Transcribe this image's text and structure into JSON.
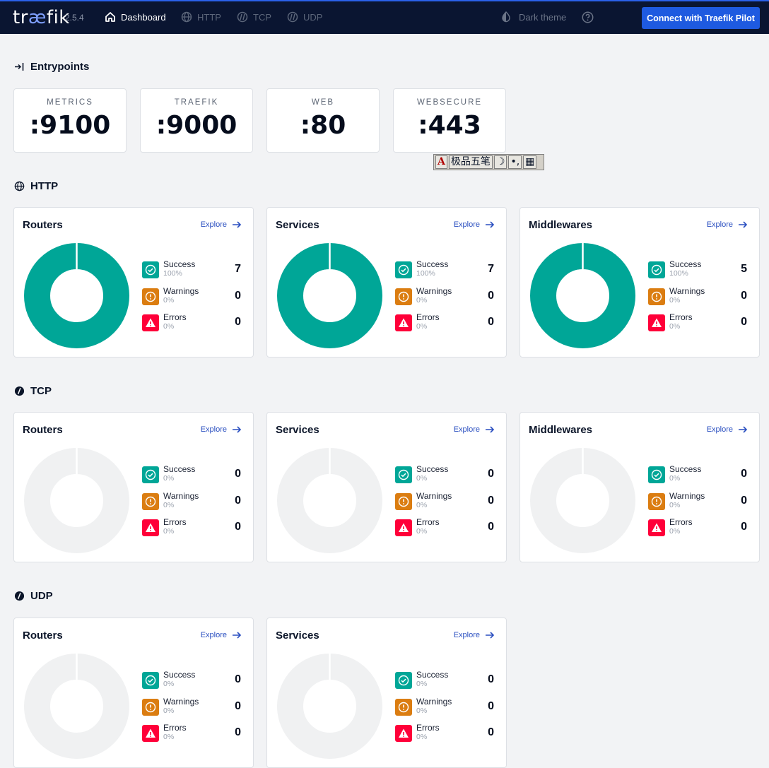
{
  "brand": {
    "logo_text_1": "tr",
    "logo_text_2": "æ",
    "logo_text_3": "fik",
    "version": "2.5.4"
  },
  "nav": {
    "dashboard": "Dashboard",
    "http": "HTTP",
    "tcp": "TCP",
    "udp": "UDP"
  },
  "header": {
    "theme_label": "Dark theme",
    "pilot_button": "Connect with Traefik Pilot"
  },
  "ime": {
    "a": "A",
    "name": "极品五笔",
    "moon": "☽",
    "punct": "•,",
    "kbd": "▦"
  },
  "entrypoints": {
    "title": "Entrypoints",
    "items": [
      {
        "name": "METRICS",
        "port": ":9100"
      },
      {
        "name": "TRAEFIK",
        "port": ":9000"
      },
      {
        "name": "WEB",
        "port": ":80"
      },
      {
        "name": "WEBSECURE",
        "port": ":443"
      }
    ]
  },
  "labels": {
    "explore": "Explore",
    "success": "Success",
    "warnings": "Warnings",
    "errors": "Errors"
  },
  "colors": {
    "success": "#00a697",
    "warning": "#db7d11",
    "error": "#ff0039",
    "empty": "#f0f1f2"
  },
  "sections": [
    {
      "title": "HTTP",
      "cards": [
        {
          "title": "Routers",
          "success": {
            "count": "7",
            "pct": "100%"
          },
          "warnings": {
            "count": "0",
            "pct": "0%"
          },
          "errors": {
            "count": "0",
            "pct": "0%"
          }
        },
        {
          "title": "Services",
          "success": {
            "count": "7",
            "pct": "100%"
          },
          "warnings": {
            "count": "0",
            "pct": "0%"
          },
          "errors": {
            "count": "0",
            "pct": "0%"
          }
        },
        {
          "title": "Middlewares",
          "success": {
            "count": "5",
            "pct": "100%"
          },
          "warnings": {
            "count": "0",
            "pct": "0%"
          },
          "errors": {
            "count": "0",
            "pct": "0%"
          }
        }
      ]
    },
    {
      "title": "TCP",
      "cards": [
        {
          "title": "Routers",
          "success": {
            "count": "0",
            "pct": "0%"
          },
          "warnings": {
            "count": "0",
            "pct": "0%"
          },
          "errors": {
            "count": "0",
            "pct": "0%"
          }
        },
        {
          "title": "Services",
          "success": {
            "count": "0",
            "pct": "0%"
          },
          "warnings": {
            "count": "0",
            "pct": "0%"
          },
          "errors": {
            "count": "0",
            "pct": "0%"
          }
        },
        {
          "title": "Middlewares",
          "success": {
            "count": "0",
            "pct": "0%"
          },
          "warnings": {
            "count": "0",
            "pct": "0%"
          },
          "errors": {
            "count": "0",
            "pct": "0%"
          }
        }
      ]
    },
    {
      "title": "UDP",
      "cards": [
        {
          "title": "Routers",
          "success": {
            "count": "0",
            "pct": "0%"
          },
          "warnings": {
            "count": "0",
            "pct": "0%"
          },
          "errors": {
            "count": "0",
            "pct": "0%"
          }
        },
        {
          "title": "Services",
          "success": {
            "count": "0",
            "pct": "0%"
          },
          "warnings": {
            "count": "0",
            "pct": "0%"
          },
          "errors": {
            "count": "0",
            "pct": "0%"
          }
        }
      ]
    }
  ]
}
